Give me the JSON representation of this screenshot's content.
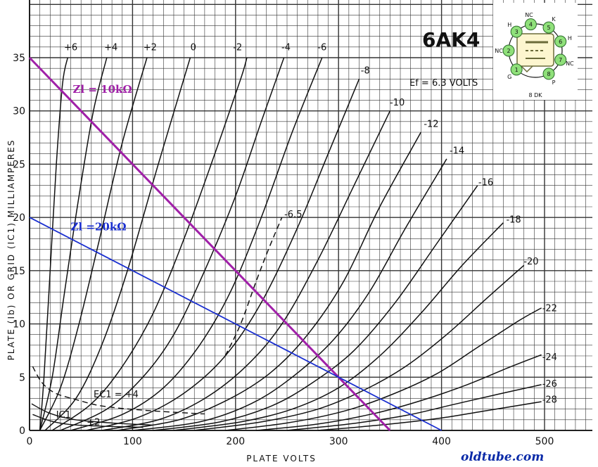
{
  "chart_data": {
    "type": "line",
    "title": "6AK4",
    "subtitle": "Ef = 6.3 VOLTS",
    "xlabel": "PLATE VOLTS",
    "ylabel": "PLATE (Ib) OR GRID (IC1) MILLIAMPERES",
    "xlim": [
      0,
      500
    ],
    "ylim": [
      0,
      35
    ],
    "x_ticks": [
      "0",
      "100",
      "200",
      "300",
      "400",
      "500"
    ],
    "y_ticks": [
      "0",
      "5",
      "10",
      "15",
      "20",
      "25",
      "30",
      "35"
    ],
    "grid": true,
    "series": [
      {
        "name": "+6",
        "label_x": 40,
        "label_y": 35.7,
        "points": [
          [
            10,
            0
          ],
          [
            14,
            5
          ],
          [
            20,
            15
          ],
          [
            26,
            25
          ],
          [
            32,
            32.5
          ],
          [
            37,
            35
          ]
        ]
      },
      {
        "name": "+4",
        "label_x": 79,
        "label_y": 35.7,
        "points": [
          [
            10,
            0
          ],
          [
            22,
            5
          ],
          [
            34,
            13
          ],
          [
            48,
            22
          ],
          [
            62,
            30
          ],
          [
            75,
            35
          ]
        ]
      },
      {
        "name": "+2",
        "label_x": 117,
        "label_y": 35.7,
        "points": [
          [
            10,
            0
          ],
          [
            30,
            4
          ],
          [
            48,
            10
          ],
          [
            68,
            18
          ],
          [
            90,
            27
          ],
          [
            114,
            35
          ]
        ]
      },
      {
        "name": "0",
        "label_x": 159,
        "label_y": 35.7,
        "points": [
          [
            15,
            0
          ],
          [
            45,
            3
          ],
          [
            70,
            8
          ],
          [
            95,
            15
          ],
          [
            125,
            25
          ],
          [
            156,
            35
          ]
        ]
      },
      {
        "name": "-2",
        "label_x": 202,
        "label_y": 35.7,
        "points": [
          [
            22,
            0
          ],
          [
            60,
            2.5
          ],
          [
            90,
            6
          ],
          [
            120,
            11
          ],
          [
            150,
            18
          ],
          [
            180,
            26
          ],
          [
            205,
            33
          ],
          [
            211,
            35
          ]
        ]
      },
      {
        "name": "-4",
        "label_x": 249,
        "label_y": 35.7,
        "points": [
          [
            30,
            0
          ],
          [
            75,
            2
          ],
          [
            110,
            5
          ],
          [
            140,
            9
          ],
          [
            170,
            15
          ],
          [
            200,
            22
          ],
          [
            225,
            29
          ],
          [
            247,
            35
          ]
        ]
      },
      {
        "name": "-6",
        "label_x": 284,
        "label_y": 35.7,
        "points": [
          [
            40,
            0
          ],
          [
            90,
            1.5
          ],
          [
            130,
            4
          ],
          [
            165,
            8
          ],
          [
            195,
            13
          ],
          [
            225,
            20
          ],
          [
            255,
            28
          ],
          [
            284,
            35
          ]
        ]
      },
      {
        "name": "-6.5",
        "label_x": 256,
        "label_y": 20,
        "dashed": true,
        "points": [
          [
            190,
            7
          ],
          [
            205,
            10
          ],
          [
            220,
            14
          ],
          [
            232,
            17
          ],
          [
            245,
            20
          ]
        ]
      },
      {
        "name": "-8",
        "label_x": 326,
        "label_y": 33.5,
        "points": [
          [
            55,
            0
          ],
          [
            105,
            1.2
          ],
          [
            150,
            3.5
          ],
          [
            190,
            7
          ],
          [
            225,
            12
          ],
          [
            260,
            19
          ],
          [
            290,
            26
          ],
          [
            320,
            33
          ]
        ]
      },
      {
        "name": "-10",
        "label_x": 357,
        "label_y": 30.5,
        "points": [
          [
            70,
            0
          ],
          [
            125,
            1
          ],
          [
            170,
            3
          ],
          [
            210,
            6
          ],
          [
            245,
            10
          ],
          [
            280,
            16
          ],
          [
            315,
            23
          ],
          [
            350,
            30
          ]
        ]
      },
      {
        "name": "-12",
        "label_x": 390,
        "label_y": 28.5,
        "points": [
          [
            85,
            0
          ],
          [
            145,
            1
          ],
          [
            195,
            3
          ],
          [
            235,
            5.5
          ],
          [
            270,
            9
          ],
          [
            305,
            14
          ],
          [
            340,
            21
          ],
          [
            380,
            28
          ]
        ]
      },
      {
        "name": "-14",
        "label_x": 415,
        "label_y": 26,
        "points": [
          [
            100,
            0
          ],
          [
            165,
            0.8
          ],
          [
            215,
            2.5
          ],
          [
            255,
            5
          ],
          [
            295,
            8.5
          ],
          [
            330,
            13
          ],
          [
            365,
            19
          ],
          [
            405,
            25.5
          ]
        ]
      },
      {
        "name": "-16",
        "label_x": 443,
        "label_y": 23,
        "points": [
          [
            120,
            0
          ],
          [
            185,
            0.8
          ],
          [
            235,
            2.3
          ],
          [
            275,
            4.5
          ],
          [
            315,
            7.5
          ],
          [
            355,
            12
          ],
          [
            395,
            17.5
          ],
          [
            435,
            23
          ]
        ]
      },
      {
        "name": "-18",
        "label_x": 470,
        "label_y": 19.5,
        "points": [
          [
            140,
            0
          ],
          [
            205,
            0.8
          ],
          [
            255,
            2
          ],
          [
            300,
            4
          ],
          [
            340,
            7
          ],
          [
            380,
            11
          ],
          [
            420,
            15.5
          ],
          [
            460,
            19.5
          ]
        ]
      },
      {
        "name": "-20",
        "label_x": 487,
        "label_y": 15.6,
        "points": [
          [
            160,
            0
          ],
          [
            225,
            0.8
          ],
          [
            280,
            2
          ],
          [
            325,
            3.8
          ],
          [
            365,
            6
          ],
          [
            405,
            9
          ],
          [
            445,
            12.5
          ],
          [
            480,
            15.5
          ]
        ]
      },
      {
        "name": "-22",
        "label_x": 505,
        "label_y": 11.2,
        "points": [
          [
            190,
            0
          ],
          [
            250,
            0.7
          ],
          [
            305,
            1.8
          ],
          [
            350,
            3.3
          ],
          [
            395,
            5.3
          ],
          [
            435,
            7.8
          ],
          [
            475,
            10.3
          ],
          [
            497,
            11.5
          ]
        ]
      },
      {
        "name": "-24",
        "label_x": 505,
        "label_y": 6.6,
        "points": [
          [
            220,
            0
          ],
          [
            280,
            0.6
          ],
          [
            335,
            1.6
          ],
          [
            380,
            2.8
          ],
          [
            425,
            4.3
          ],
          [
            465,
            5.9
          ],
          [
            497,
            7.1
          ]
        ]
      },
      {
        "name": "-26",
        "label_x": 505,
        "label_y": 4.1,
        "points": [
          [
            250,
            0
          ],
          [
            310,
            0.6
          ],
          [
            365,
            1.4
          ],
          [
            410,
            2.4
          ],
          [
            455,
            3.4
          ],
          [
            497,
            4.3
          ]
        ]
      },
      {
        "name": "-28",
        "label_x": 505,
        "label_y": 2.6,
        "points": [
          [
            280,
            0
          ],
          [
            340,
            0.5
          ],
          [
            395,
            1.1
          ],
          [
            440,
            1.8
          ],
          [
            497,
            2.7
          ]
        ]
      }
    ],
    "grid_current": [
      {
        "name": "IC1",
        "label_x": 33,
        "label_y": 1.2,
        "points": [
          [
            2,
            2.5
          ],
          [
            20,
            1.6
          ],
          [
            45,
            1
          ],
          [
            80,
            0.7
          ],
          [
            120,
            0.5
          ]
        ]
      },
      {
        "name": "+2",
        "label_x": 62,
        "label_y": 0.5,
        "points": [
          [
            3,
            1.5
          ],
          [
            20,
            0.9
          ],
          [
            40,
            0.55
          ],
          [
            70,
            0.4
          ],
          [
            110,
            0.3
          ]
        ]
      },
      {
        "name": "EC1 = +4",
        "label_x": 84,
        "label_y": 3.1,
        "dashed": true,
        "points": [
          [
            3,
            6
          ],
          [
            12,
            4.5
          ],
          [
            25,
            3.5
          ],
          [
            45,
            2.9
          ],
          [
            70,
            2.3
          ],
          [
            110,
            1.9
          ],
          [
            160,
            1.6
          ],
          [
            170,
            1.55
          ]
        ]
      }
    ],
    "load_lines": [
      {
        "name": "Zl = 10kΩ",
        "color": "#a020a8",
        "label_x": 42,
        "label_y": 31.7,
        "points": [
          [
            0,
            35
          ],
          [
            350,
            0
          ]
        ]
      },
      {
        "name": "Zl =20kΩ",
        "color": "#1a2fd0",
        "label_x": 40,
        "label_y": 18.8,
        "points": [
          [
            0,
            20
          ],
          [
            400,
            0
          ]
        ]
      }
    ]
  },
  "header": {
    "tube": "6AK4",
    "filament": "Ef = 6.3 VOLTS"
  },
  "basing": {
    "label": "8 DK",
    "pins": [
      {
        "n": "1",
        "name": "G"
      },
      {
        "n": "2",
        "name": "NC"
      },
      {
        "n": "3",
        "name": "H"
      },
      {
        "n": "4",
        "name": "NC"
      },
      {
        "n": "5",
        "name": "K"
      },
      {
        "n": "6",
        "name": "H"
      },
      {
        "n": "7",
        "name": "NC"
      },
      {
        "n": "8",
        "name": "P"
      }
    ],
    "pin_color": "#8fe07a"
  },
  "watermark": "oldtube.com",
  "colors": {
    "grid": "#333333",
    "curve": "#111111",
    "background": "#ffffff"
  }
}
